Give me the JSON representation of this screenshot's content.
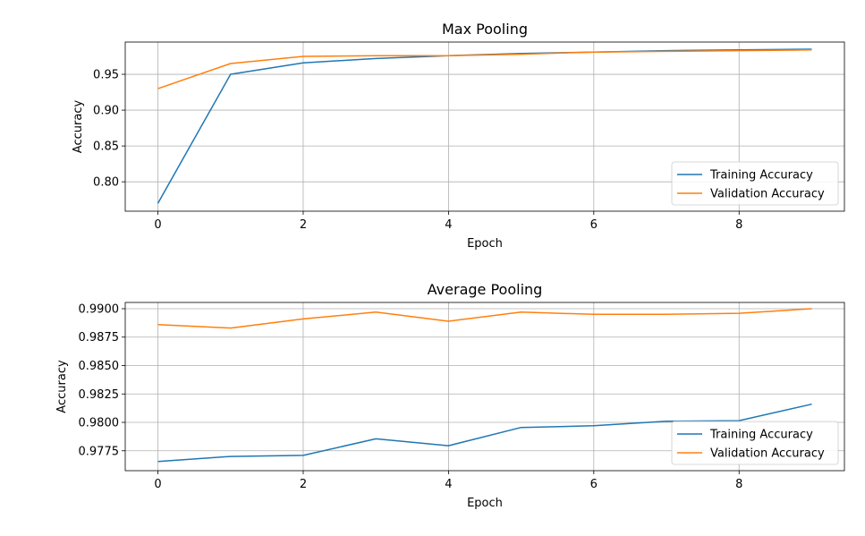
{
  "colors": {
    "training": "#1f77b4",
    "validation": "#ff7f0e",
    "grid": "#b0b0b0",
    "axes": "#000000"
  },
  "chart_data": [
    {
      "type": "line",
      "title": "Max Pooling",
      "xlabel": "Epoch",
      "ylabel": "Accuracy",
      "xlim": [
        -0.45,
        9.45
      ],
      "ylim": [
        0.759,
        0.995
      ],
      "grid": true,
      "legend_position": "lower-right",
      "x": [
        0,
        1,
        2,
        3,
        4,
        5,
        6,
        7,
        8,
        9
      ],
      "x_ticks": [
        "0",
        "2",
        "4",
        "6",
        "8"
      ],
      "x_tick_values": [
        0,
        2,
        4,
        6,
        8
      ],
      "y_ticks": [
        "0.80",
        "0.85",
        "0.90",
        "0.95"
      ],
      "y_tick_values": [
        0.8,
        0.85,
        0.9,
        0.95
      ],
      "series": [
        {
          "name": "Training Accuracy",
          "color_key": "training",
          "values": [
            0.77,
            0.95,
            0.966,
            0.972,
            0.976,
            0.979,
            0.981,
            0.983,
            0.984,
            0.985
          ]
        },
        {
          "name": "Validation Accuracy",
          "color_key": "validation",
          "values": [
            0.93,
            0.965,
            0.975,
            0.976,
            0.976,
            0.978,
            0.981,
            0.982,
            0.983,
            0.984
          ]
        }
      ]
    },
    {
      "type": "line",
      "title": "Average Pooling",
      "xlabel": "Epoch",
      "ylabel": "Accuracy",
      "xlim": [
        -0.45,
        9.45
      ],
      "ylim": [
        0.97575,
        0.99055
      ],
      "grid": true,
      "legend_position": "lower-right",
      "x": [
        0,
        1,
        2,
        3,
        4,
        5,
        6,
        7,
        8,
        9
      ],
      "x_ticks": [
        "0",
        "2",
        "4",
        "6",
        "8"
      ],
      "x_tick_values": [
        0,
        2,
        4,
        6,
        8
      ],
      "y_ticks": [
        "0.9775",
        "0.9800",
        "0.9825",
        "0.9850",
        "0.9875",
        "0.9900"
      ],
      "y_tick_values": [
        0.9775,
        0.98,
        0.9825,
        0.985,
        0.9875,
        0.99
      ],
      "series": [
        {
          "name": "Training Accuracy",
          "color_key": "training",
          "values": [
            0.97655,
            0.977,
            0.9771,
            0.97855,
            0.97795,
            0.97955,
            0.9797,
            0.9801,
            0.98015,
            0.9816
          ]
        },
        {
          "name": "Validation Accuracy",
          "color_key": "validation",
          "values": [
            0.9886,
            0.9883,
            0.9891,
            0.9897,
            0.9889,
            0.9897,
            0.9895,
            0.9895,
            0.9896,
            0.99
          ]
        }
      ]
    }
  ]
}
